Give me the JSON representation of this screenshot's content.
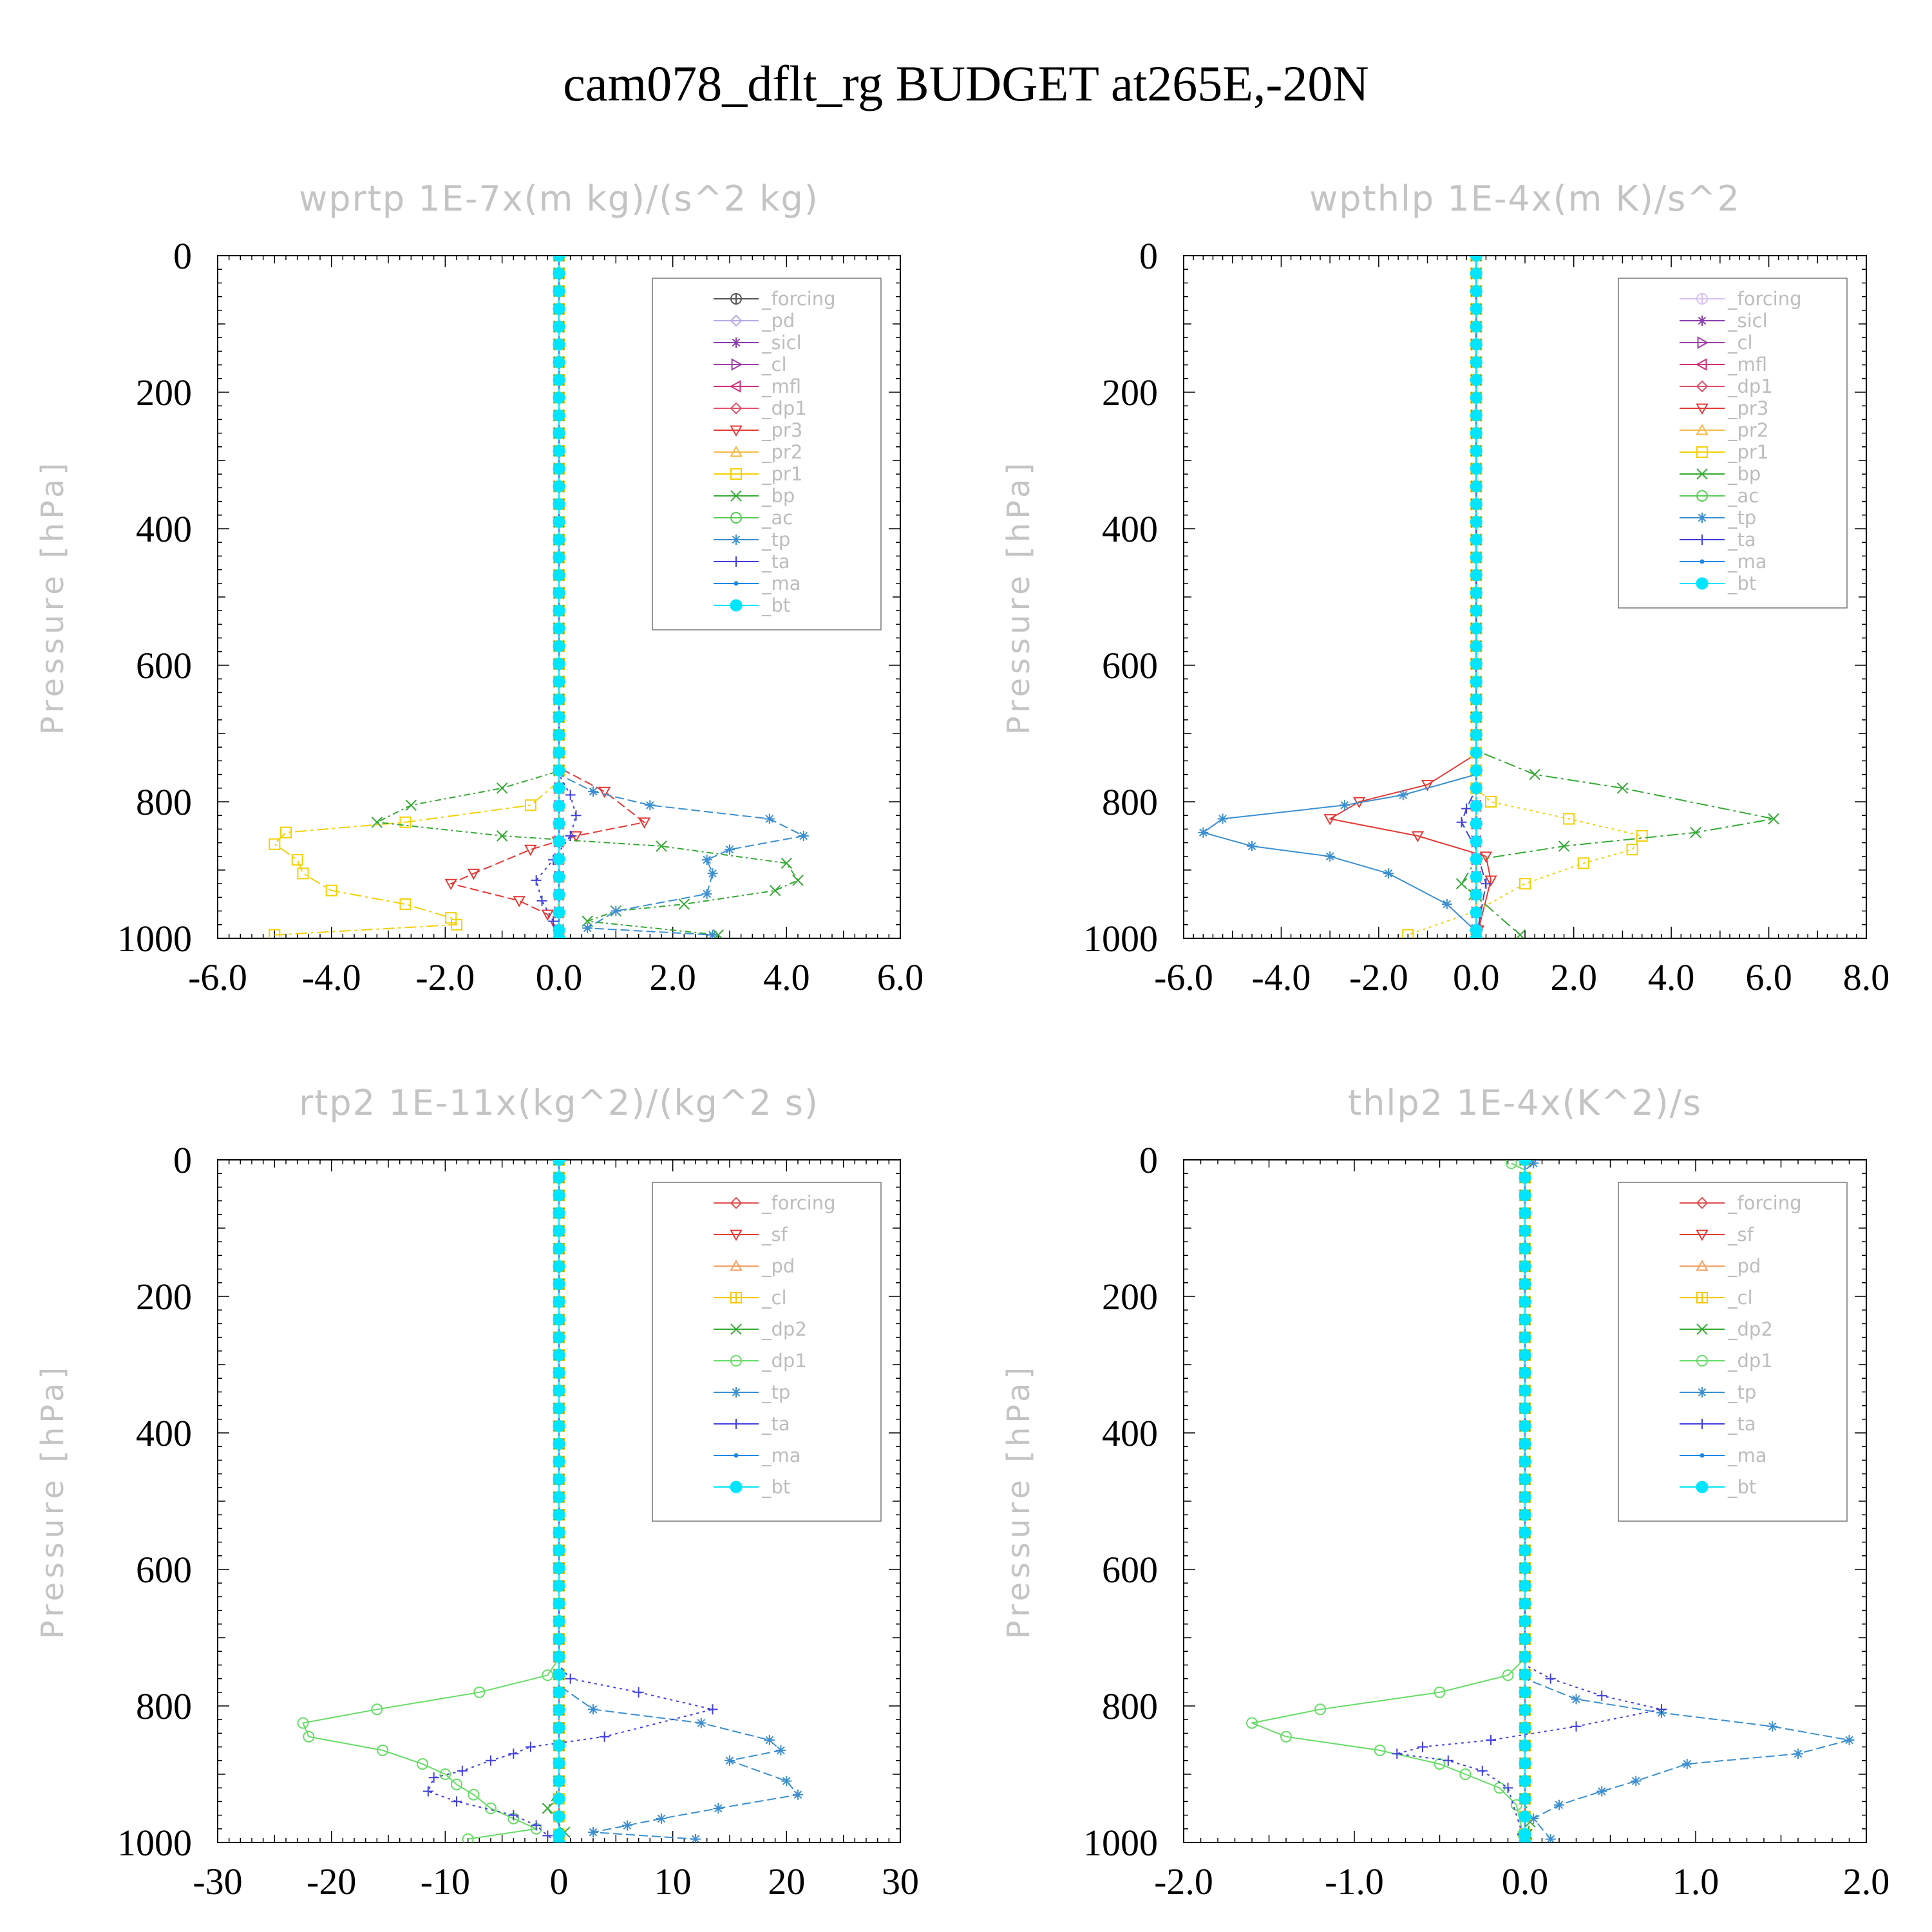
{
  "figure_title": "cam078_dflt_rg  BUDGET at265E,-20N",
  "chart_data": [
    {
      "type": "line",
      "title": "wprtp  1E-7x(m kg)/(s^2 kg)",
      "ylabel": "Pressure [hPa]",
      "xlim": [
        -6,
        6
      ],
      "ylim": [
        1000,
        0
      ],
      "xticks": [
        "-6.0",
        "-4.0",
        "-2.0",
        "0.0",
        "2.0",
        "4.0",
        "6.0"
      ],
      "yticks": [
        "0",
        "200",
        "400",
        "600",
        "800",
        "1000"
      ],
      "grid": false,
      "legend": "top-right",
      "series": [
        {
          "name": "_forcing",
          "color": "#555555",
          "marker": "circle-plus",
          "x": [
            0,
            0
          ],
          "y": [
            0,
            1000
          ]
        },
        {
          "name": "_pd",
          "color": "#b8a8e8",
          "marker": "diamond",
          "x": [
            0,
            0
          ],
          "y": [
            0,
            1000
          ]
        },
        {
          "name": "_sicl",
          "color": "#8a3db0",
          "marker": "star",
          "x": [
            0,
            0
          ],
          "y": [
            0,
            1000
          ]
        },
        {
          "name": "_cl",
          "color": "#9b3fa6",
          "marker": "triangle-right",
          "x": [
            0,
            0
          ],
          "y": [
            0,
            1000
          ]
        },
        {
          "name": "_mfl",
          "color": "#d0307a",
          "marker": "triangle-left",
          "x": [
            0,
            0
          ],
          "y": [
            0,
            1000
          ]
        },
        {
          "name": "_dp1",
          "color": "#e0506a",
          "marker": "diamond",
          "x": [
            0,
            0
          ],
          "y": [
            0,
            1000
          ]
        },
        {
          "name": "_pr3",
          "color": "#e53935",
          "marker": "triangle-down",
          "x": [
            0,
            0,
            0.8,
            1.5,
            0.3,
            -0.5,
            -1.5,
            -1.9,
            -0.7,
            -0.2,
            0
          ],
          "y": [
            0,
            750,
            785,
            830,
            850,
            870,
            905,
            920,
            945,
            965,
            1000
          ]
        },
        {
          "name": "_pr2",
          "color": "#f5b942",
          "marker": "triangle-up",
          "x": [
            0,
            0
          ],
          "y": [
            0,
            1000
          ]
        },
        {
          "name": "_pr1",
          "color": "#f5d000",
          "marker": "square",
          "x": [
            0,
            0,
            -0.5,
            -2.7,
            -4.8,
            -5.0,
            -4.6,
            -4.5,
            -4.0,
            -2.7,
            -1.9,
            -1.8,
            -5.0
          ],
          "y": [
            0,
            770,
            805,
            830,
            845,
            862,
            885,
            905,
            930,
            950,
            970,
            980,
            995
          ]
        },
        {
          "name": "_bp",
          "color": "#33aa33",
          "marker": "x",
          "x": [
            0,
            0,
            -1.0,
            -2.6,
            -3.2,
            -1.0,
            1.8,
            4.0,
            4.2,
            3.8,
            2.2,
            1.0,
            0.5,
            2.8
          ],
          "y": [
            0,
            755,
            780,
            805,
            830,
            850,
            865,
            890,
            915,
            930,
            950,
            960,
            975,
            995
          ]
        },
        {
          "name": "_ac",
          "color": "#55cc55",
          "marker": "circle",
          "x": [
            0,
            0
          ],
          "y": [
            0,
            1000
          ]
        },
        {
          "name": "_tp",
          "color": "#3b8fd0",
          "marker": "asterisk",
          "x": [
            0,
            0,
            0.6,
            1.6,
            3.7,
            4.3,
            3.0,
            2.6,
            2.7,
            2.6,
            1.0,
            0.5,
            2.7
          ],
          "y": [
            0,
            760,
            785,
            805,
            825,
            850,
            870,
            885,
            905,
            935,
            960,
            985,
            995
          ]
        },
        {
          "name": "_ta",
          "color": "#4040dd",
          "marker": "plus",
          "x": [
            0,
            0,
            0.2,
            0.3,
            0.2,
            -0.1,
            -0.4,
            -0.3,
            -0.1,
            0
          ],
          "y": [
            0,
            760,
            790,
            820,
            850,
            885,
            915,
            945,
            975,
            1000
          ]
        },
        {
          "name": "_ma",
          "color": "#1e88e5",
          "marker": "dot",
          "x": [
            0,
            0
          ],
          "y": [
            0,
            1000
          ]
        },
        {
          "name": "_bt",
          "color": "#00e5ff",
          "marker": "filled-circle",
          "x": [
            0,
            0
          ],
          "y": [
            0,
            1000
          ]
        }
      ]
    },
    {
      "type": "line",
      "title": "wpthlp  1E-4x(m K)/s^2",
      "ylabel": "Pressure [hPa]",
      "xlim": [
        -6,
        8
      ],
      "ylim": [
        1000,
        0
      ],
      "xticks": [
        "-6.0",
        "-4.0",
        "-2.0",
        "0.0",
        "2.0",
        "4.0",
        "6.0",
        "8.0"
      ],
      "yticks": [
        "0",
        "200",
        "400",
        "600",
        "800",
        "1000"
      ],
      "grid": false,
      "legend": "top-right",
      "series": [
        {
          "name": "_forcing",
          "color": "#d8c0f0",
          "marker": "circle-plus",
          "x": [
            0,
            0
          ],
          "y": [
            0,
            1000
          ]
        },
        {
          "name": "_sicl",
          "color": "#8a3db0",
          "marker": "star",
          "x": [
            0,
            0
          ],
          "y": [
            0,
            1000
          ]
        },
        {
          "name": "_cl",
          "color": "#9b3fa6",
          "marker": "triangle-right",
          "x": [
            0,
            0
          ],
          "y": [
            0,
            1000
          ]
        },
        {
          "name": "_mfl",
          "color": "#d0307a",
          "marker": "triangle-left",
          "x": [
            0,
            0
          ],
          "y": [
            0,
            1000
          ]
        },
        {
          "name": "_dp1",
          "color": "#e0506a",
          "marker": "diamond",
          "x": [
            0,
            0
          ],
          "y": [
            0,
            1000
          ]
        },
        {
          "name": "_pr3",
          "color": "#e53935",
          "marker": "triangle-down",
          "x": [
            0,
            0,
            -1.0,
            -2.4,
            -3.0,
            -1.2,
            0.2,
            0.3,
            0
          ],
          "y": [
            0,
            730,
            775,
            800,
            825,
            850,
            880,
            915,
            1000
          ]
        },
        {
          "name": "_pr2",
          "color": "#f5b942",
          "marker": "triangle-up",
          "x": [
            0,
            0
          ],
          "y": [
            0,
            1000
          ]
        },
        {
          "name": "_pr1",
          "color": "#f5d000",
          "marker": "square",
          "x": [
            0,
            0,
            0.3,
            1.9,
            3.4,
            3.2,
            2.2,
            1.0,
            0,
            -1.4
          ],
          "y": [
            0,
            780,
            800,
            825,
            850,
            870,
            890,
            920,
            960,
            995
          ]
        },
        {
          "name": "_bp",
          "color": "#33aa33",
          "marker": "x",
          "x": [
            0,
            0,
            1.2,
            3.0,
            6.1,
            4.5,
            1.8,
            0,
            -0.3,
            0.9
          ],
          "y": [
            0,
            725,
            760,
            780,
            825,
            845,
            865,
            885,
            920,
            995
          ]
        },
        {
          "name": "_ac",
          "color": "#55cc55",
          "marker": "circle",
          "x": [
            0,
            0
          ],
          "y": [
            0,
            1000
          ]
        },
        {
          "name": "_tp",
          "color": "#3b8fd0",
          "marker": "asterisk",
          "x": [
            0,
            0,
            -1.5,
            -2.7,
            -5.2,
            -5.6,
            -4.6,
            -3.0,
            -1.8,
            -0.6,
            0
          ],
          "y": [
            0,
            760,
            790,
            805,
            825,
            845,
            865,
            880,
            905,
            950,
            990
          ]
        },
        {
          "name": "_ta",
          "color": "#4040dd",
          "marker": "plus",
          "x": [
            0,
            0,
            -0.2,
            -0.3,
            0,
            0.2,
            0
          ],
          "y": [
            0,
            780,
            810,
            830,
            870,
            920,
            1000
          ]
        },
        {
          "name": "_ma",
          "color": "#1e88e5",
          "marker": "dot",
          "x": [
            0,
            0
          ],
          "y": [
            0,
            1000
          ]
        },
        {
          "name": "_bt",
          "color": "#00e5ff",
          "marker": "filled-circle",
          "x": [
            0,
            0
          ],
          "y": [
            0,
            1000
          ]
        }
      ]
    },
    {
      "type": "line",
      "title": "rtp2  1E-11x(kg^2)/(kg^2 s)",
      "ylabel": "Pressure [hPa]",
      "xlim": [
        -30,
        30
      ],
      "ylim": [
        1000,
        0
      ],
      "xticks": [
        "-30",
        "-20",
        "-10",
        "0",
        "10",
        "20",
        "30"
      ],
      "yticks": [
        "0",
        "200",
        "400",
        "600",
        "800",
        "1000"
      ],
      "grid": false,
      "legend": "top-right",
      "series": [
        {
          "name": "_forcing",
          "color": "#e05050",
          "marker": "diamond",
          "x": [
            0,
            0
          ],
          "y": [
            0,
            1000
          ]
        },
        {
          "name": "_sf",
          "color": "#e53935",
          "marker": "triangle-down",
          "x": [
            0,
            0
          ],
          "y": [
            0,
            1000
          ]
        },
        {
          "name": "_pd",
          "color": "#f5a060",
          "marker": "triangle-up",
          "x": [
            0,
            0
          ],
          "y": [
            0,
            1000
          ]
        },
        {
          "name": "_cl",
          "color": "#f5c800",
          "marker": "square-plus",
          "x": [
            0,
            0
          ],
          "y": [
            0,
            1000
          ]
        },
        {
          "name": "_dp2",
          "color": "#33aa33",
          "marker": "x",
          "x": [
            0,
            0,
            -1,
            0.5,
            0
          ],
          "y": [
            0,
            920,
            950,
            985,
            1000
          ]
        },
        {
          "name": "_dp1",
          "color": "#66dd66",
          "marker": "circle",
          "x": [
            0,
            0,
            -1,
            -7,
            -16,
            -22.5,
            -22,
            -15.5,
            -12,
            -10,
            -9,
            -7.5,
            -6,
            -4,
            -2,
            -8
          ],
          "y": [
            0,
            730,
            755,
            780,
            805,
            825,
            845,
            865,
            885,
            900,
            915,
            930,
            950,
            965,
            980,
            995
          ]
        },
        {
          "name": "_tp",
          "color": "#3b8fd0",
          "marker": "asterisk",
          "x": [
            0,
            0,
            3,
            12.5,
            18.5,
            19.5,
            15,
            20,
            21,
            14,
            9,
            6,
            3,
            12
          ],
          "y": [
            0,
            770,
            805,
            825,
            850,
            865,
            880,
            910,
            930,
            950,
            965,
            975,
            985,
            995
          ]
        },
        {
          "name": "_ta",
          "color": "#4040dd",
          "marker": "plus",
          "x": [
            0,
            0,
            1,
            7,
            13.5,
            4,
            -2.5,
            -4,
            -6,
            -8.5,
            -11,
            -11.5,
            -9,
            -4,
            -2,
            -1,
            0
          ],
          "y": [
            0,
            740,
            760,
            780,
            805,
            845,
            860,
            870,
            880,
            895,
            905,
            925,
            940,
            960,
            975,
            990,
            1000
          ]
        },
        {
          "name": "_ma",
          "color": "#1e88e5",
          "marker": "dot",
          "x": [
            0,
            0
          ],
          "y": [
            0,
            1000
          ]
        },
        {
          "name": "_bt",
          "color": "#00e5ff",
          "marker": "filled-circle",
          "x": [
            0,
            0
          ],
          "y": [
            0,
            1000
          ]
        }
      ]
    },
    {
      "type": "line",
      "title": "thlp2  1E-4x(K^2)/s",
      "ylabel": "Pressure [hPa]",
      "xlim": [
        -2,
        2
      ],
      "ylim": [
        1000,
        0
      ],
      "xticks": [
        "-2.0",
        "-1.0",
        "0.0",
        "1.0",
        "2.0"
      ],
      "yticks": [
        "0",
        "200",
        "400",
        "600",
        "800",
        "1000"
      ],
      "grid": false,
      "legend": "top-right",
      "series": [
        {
          "name": "_forcing",
          "color": "#e05050",
          "marker": "diamond",
          "x": [
            0,
            0
          ],
          "y": [
            0,
            1000
          ]
        },
        {
          "name": "_sf",
          "color": "#e53935",
          "marker": "triangle-down",
          "x": [
            0,
            0
          ],
          "y": [
            0,
            1000
          ]
        },
        {
          "name": "_pd",
          "color": "#f5a060",
          "marker": "triangle-up",
          "x": [
            0,
            0
          ],
          "y": [
            0,
            1000
          ]
        },
        {
          "name": "_cl",
          "color": "#f5c800",
          "marker": "square-plus",
          "x": [
            0,
            0
          ],
          "y": [
            0,
            1000
          ]
        },
        {
          "name": "_dp2",
          "color": "#33aa33",
          "marker": "x",
          "x": [
            0,
            0,
            0.03,
            0
          ],
          "y": [
            0,
            940,
            970,
            1000
          ]
        },
        {
          "name": "_dp1",
          "color": "#66dd66",
          "marker": "circle",
          "x": [
            -0.08,
            0,
            0,
            -0.1,
            -0.5,
            -1.2,
            -1.6,
            -1.4,
            -0.85,
            -0.5,
            -0.35,
            -0.15,
            -0.05,
            0
          ],
          "y": [
            5,
            15,
            730,
            755,
            780,
            805,
            825,
            845,
            865,
            885,
            900,
            920,
            945,
            1000
          ]
        },
        {
          "name": "_tp",
          "color": "#3b8fd0",
          "marker": "asterisk",
          "x": [
            0.05,
            0,
            0,
            0.3,
            0.8,
            1.45,
            1.9,
            1.6,
            0.95,
            0.65,
            0.45,
            0.2,
            0.05,
            0.15
          ],
          "y": [
            5,
            15,
            760,
            790,
            810,
            830,
            850,
            870,
            885,
            910,
            925,
            945,
            965,
            995
          ]
        },
        {
          "name": "_ta",
          "color": "#4040dd",
          "marker": "plus",
          "x": [
            0,
            0,
            0.15,
            0.45,
            0.8,
            0.3,
            -0.2,
            -0.6,
            -0.75,
            -0.45,
            -0.25,
            -0.1,
            0
          ],
          "y": [
            0,
            740,
            760,
            785,
            805,
            830,
            850,
            860,
            870,
            880,
            895,
            920,
            1000
          ]
        },
        {
          "name": "_ma",
          "color": "#1e88e5",
          "marker": "dot",
          "x": [
            0,
            0
          ],
          "y": [
            0,
            1000
          ]
        },
        {
          "name": "_bt",
          "color": "#00e5ff",
          "marker": "filled-circle",
          "x": [
            0,
            0
          ],
          "y": [
            0,
            1000
          ]
        }
      ]
    }
  ]
}
